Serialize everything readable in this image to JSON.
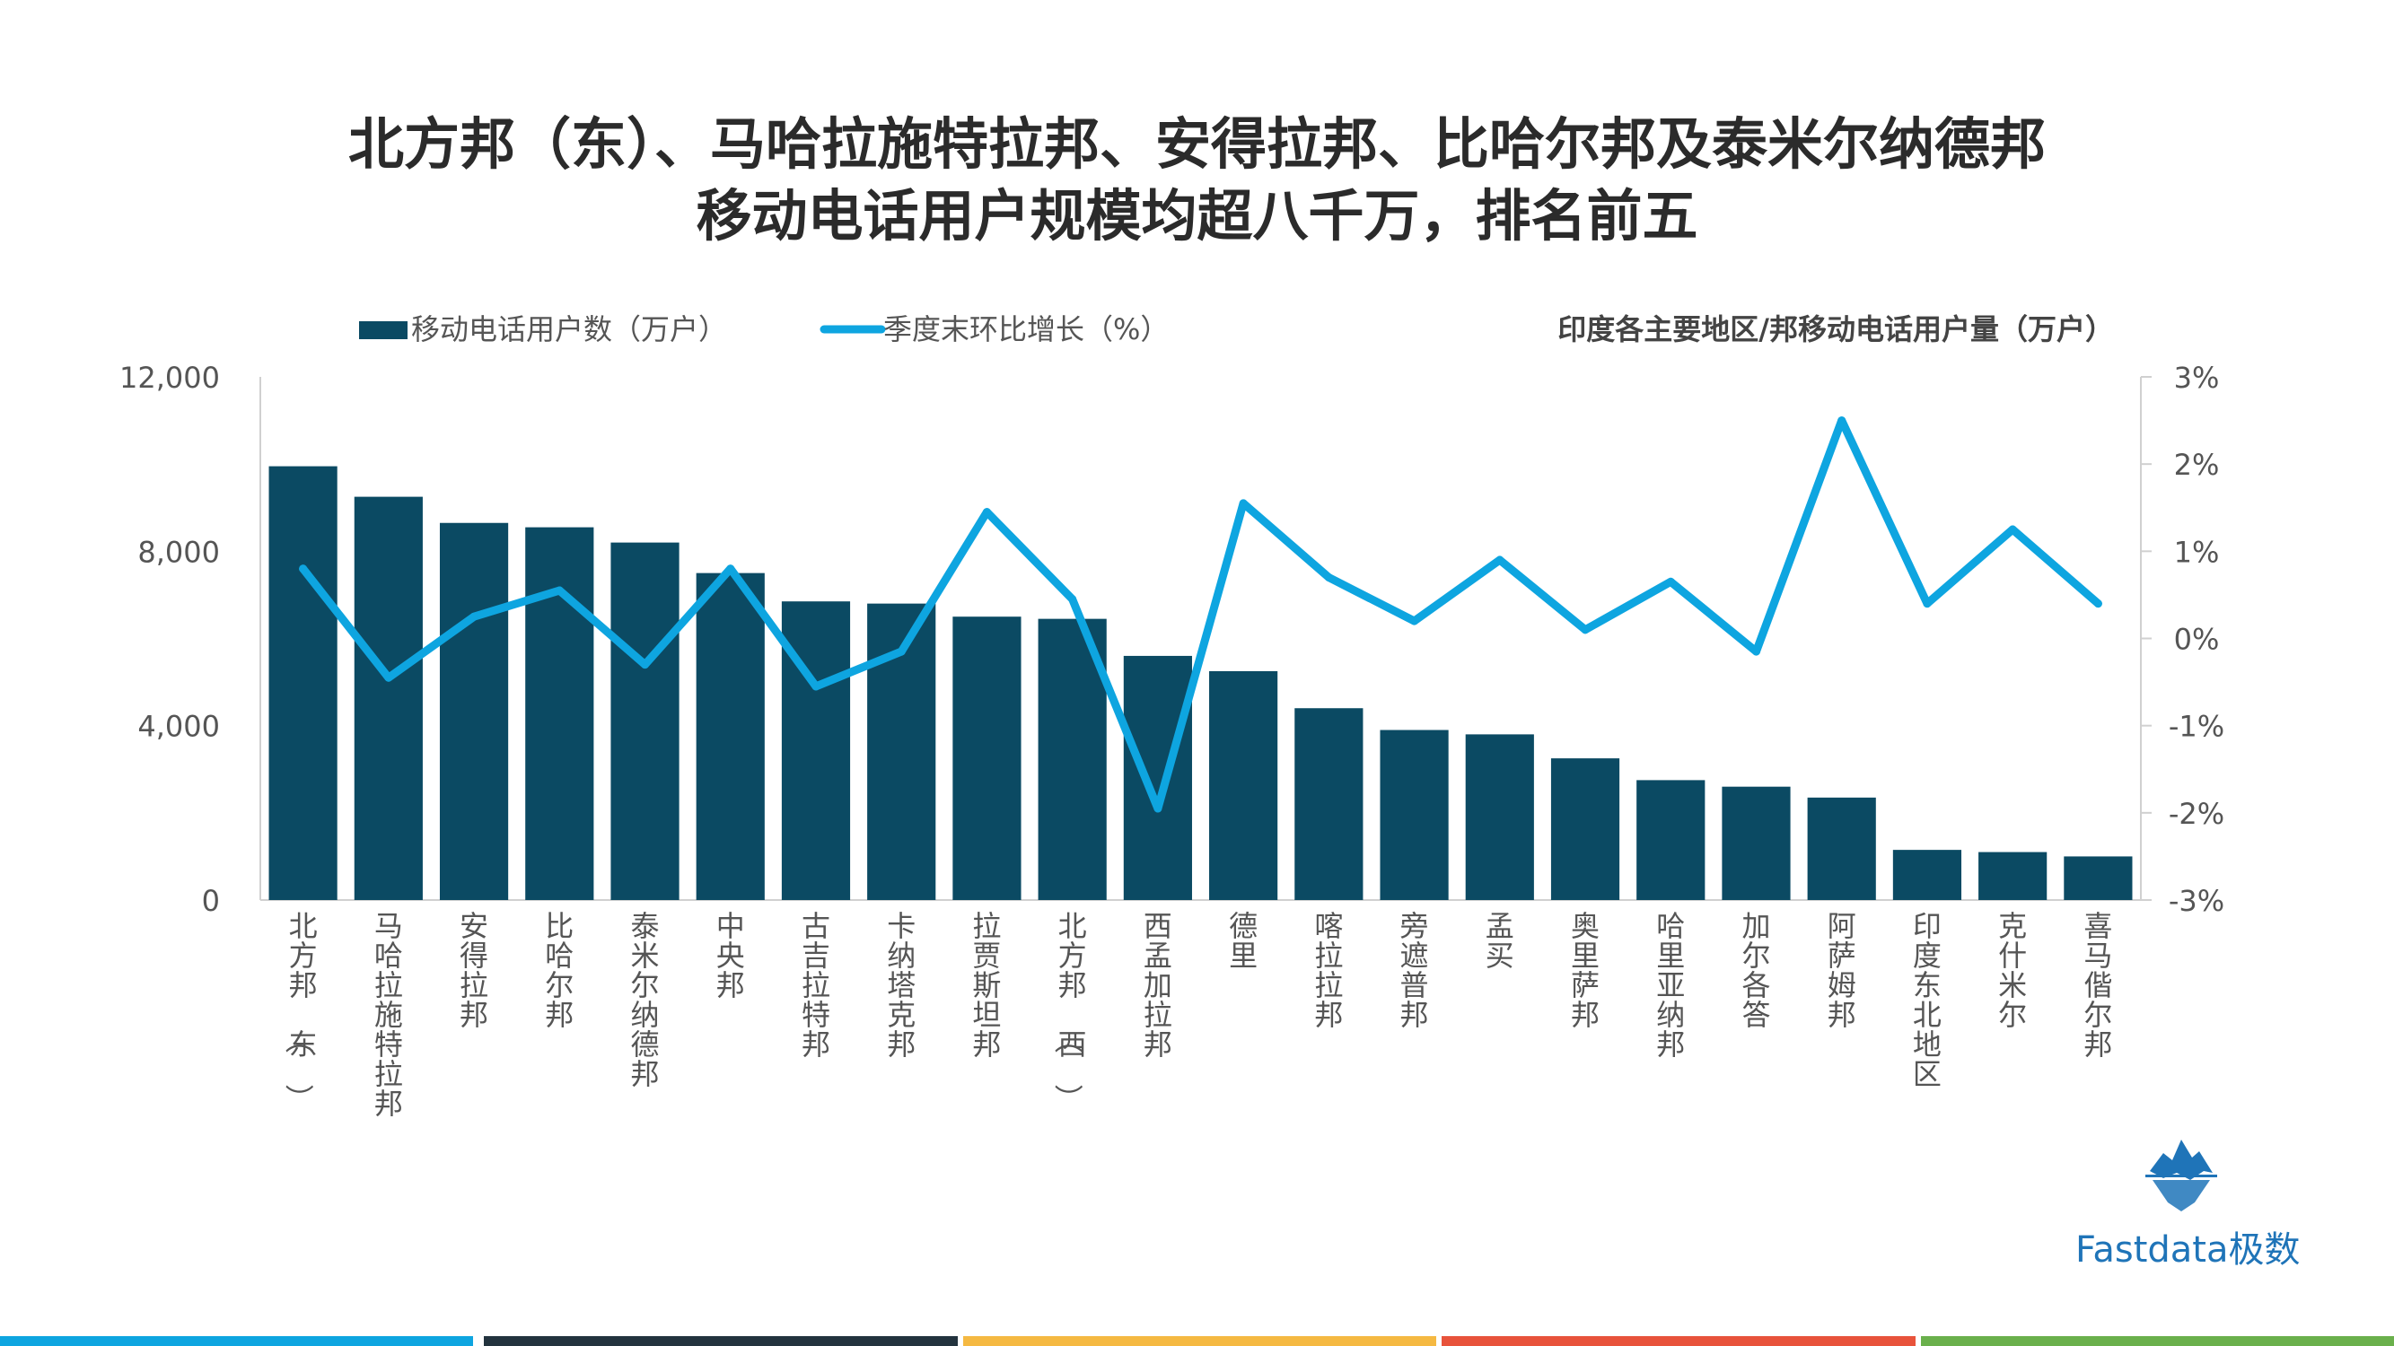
{
  "title": {
    "line1": "北方邦（东）、马哈拉施特拉邦、安得拉邦、比哈尔邦及泰米尔纳德邦",
    "line2": "移动电话用户规模均超八千万，排名前五"
  },
  "colors": {
    "bar": "#0b4a63",
    "line": "#0ea5e0",
    "axis_text": "#555555",
    "footer": [
      "#0ea5e0",
      "#23333e",
      "#f5b942",
      "#e8533b",
      "#6ab04c"
    ]
  },
  "logo": {
    "icon": "iceberg-logo-icon",
    "text": "Fastdata极数"
  },
  "chart_data": {
    "type": "bar",
    "title": "印度各主要地区/邦移动电话用户量（万户）",
    "categories": [
      "北方邦（东）",
      "马哈拉施特拉邦",
      "安得拉邦",
      "比哈尔邦",
      "泰米尔纳德邦",
      "中央邦",
      "古吉拉特邦",
      "卡纳塔克邦",
      "拉贾斯坦邦",
      "北方邦（西）",
      "西孟加拉邦",
      "德里",
      "喀拉拉邦",
      "旁遮普邦",
      "孟买",
      "奥里萨邦",
      "哈里亚纳邦",
      "加尔各答",
      "阿萨姆邦",
      "印度东北地区",
      "克什米尔",
      "喜马偕尔邦"
    ],
    "series": [
      {
        "name": "移动电话用户数（万户）",
        "type": "bar",
        "axis": "left",
        "values": [
          9950,
          9250,
          8650,
          8550,
          8200,
          7500,
          6850,
          6800,
          6500,
          6450,
          5600,
          5250,
          4400,
          3900,
          3800,
          3250,
          2750,
          2600,
          2350,
          1150,
          1100,
          1000
        ]
      },
      {
        "name": "季度末环比增长（%）",
        "type": "line",
        "axis": "right",
        "values": [
          0.8,
          -0.45,
          0.25,
          0.55,
          -0.3,
          0.8,
          -0.55,
          -0.15,
          1.45,
          0.45,
          -1.95,
          1.55,
          0.7,
          0.2,
          0.9,
          0.1,
          0.65,
          -0.15,
          2.5,
          0.4,
          1.25,
          0.4
        ]
      }
    ],
    "y_left": {
      "min": 0,
      "max": 12000,
      "ticks": [
        "0",
        "4,000",
        "8,000",
        "12,000"
      ],
      "tick_values": [
        0,
        4000,
        8000,
        12000
      ]
    },
    "y_right": {
      "min": -3,
      "max": 3,
      "ticks": [
        "-3%",
        "-2%",
        "-1%",
        "0%",
        "1%",
        "2%",
        "3%"
      ],
      "tick_values": [
        -3,
        -2,
        -1,
        0,
        1,
        2,
        3
      ]
    },
    "legend_position": "top-left",
    "grid": false
  }
}
